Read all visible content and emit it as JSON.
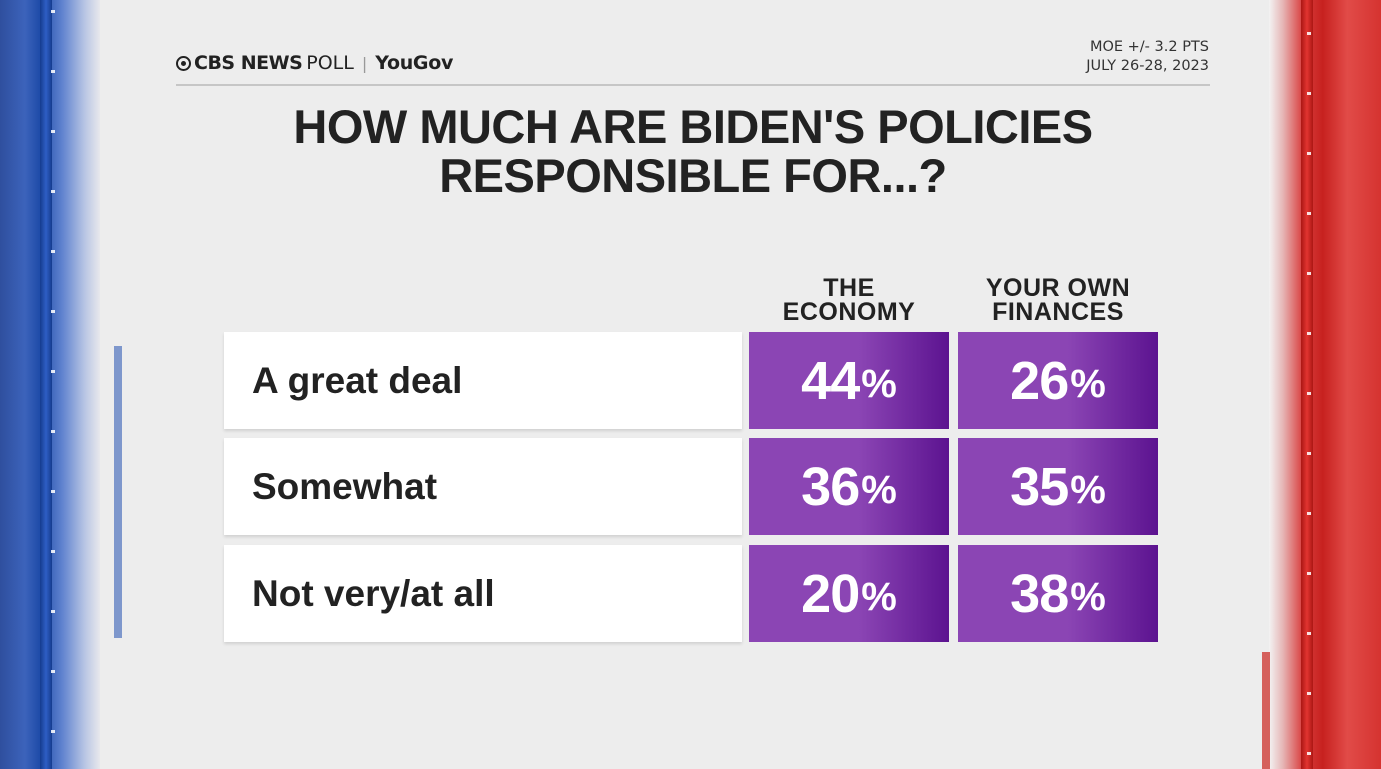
{
  "header": {
    "brand_primary": "CBS NEWS",
    "brand_secondary": "POLL",
    "brand_separator": "|",
    "partner": "YouGov",
    "moe": "MOE +/- 3.2 PTS",
    "dates": "JULY 26-28, 2023"
  },
  "chart_data": {
    "type": "table",
    "title": "HOW MUCH ARE BIDEN'S POLICIES RESPONSIBLE FOR...?",
    "title_lines": [
      "HOW MUCH ARE BIDEN'S POLICIES",
      "RESPONSIBLE FOR...?"
    ],
    "columns": [
      {
        "name": "THE ECONOMY",
        "lines": [
          "THE",
          "ECONOMY"
        ]
      },
      {
        "name": "YOUR OWN FINANCES",
        "lines": [
          "YOUR OWN",
          "FINANCES"
        ]
      }
    ],
    "categories": [
      "A great deal",
      "Somewhat",
      "Not very/at all"
    ],
    "series": [
      {
        "name": "THE ECONOMY",
        "values": [
          44,
          36,
          20
        ]
      },
      {
        "name": "YOUR OWN FINANCES",
        "values": [
          26,
          35,
          38
        ]
      }
    ],
    "unit": "%",
    "colors": {
      "cell": "#8b45b4",
      "cell_dark": "#5c1390",
      "text": "#222222"
    }
  }
}
